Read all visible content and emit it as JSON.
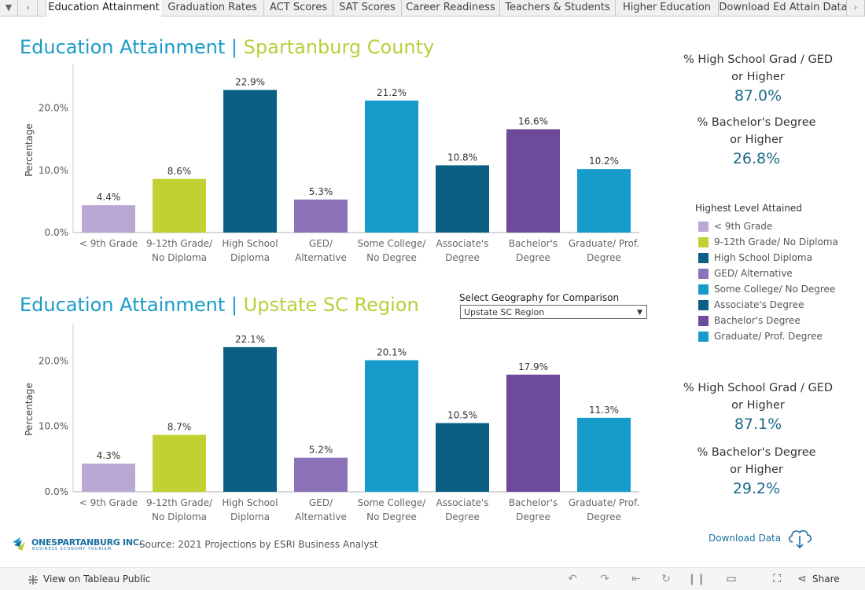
{
  "tabs": [
    "Education Attainment",
    "Graduation Rates",
    "ACT Scores",
    "SAT Scores",
    "Career Readiness",
    "Teachers & Students",
    "Higher Education",
    "Download Ed Attain Data"
  ],
  "active_tab": 0,
  "colors": {
    "lt9": "#b9a8d4",
    "g912": "#c1d132",
    "hs": "#0b5f84",
    "ged": "#8c72b8",
    "some": "#159ccb",
    "assoc": "#0b5f84",
    "bach": "#6e4a9a",
    "grad": "#159ccb",
    "title_blue": "#1a9bc8",
    "title_green": "#b8cf3a",
    "kpi": "#1d6a8a"
  },
  "chart1": {
    "title_main": "Education Attainment",
    "title_sep": "|",
    "title_geo": "Spartanburg County",
    "ylabel": "Percentage"
  },
  "chart2": {
    "title_main": "Education Attainment",
    "title_sep": "|",
    "title_geo": "Upstate SC Region",
    "ylabel": "Percentage"
  },
  "chart_data": [
    {
      "type": "bar",
      "title": "Education Attainment | Spartanburg County",
      "ylabel": "Percentage",
      "categories": [
        [
          "< 9th Grade"
        ],
        [
          "9-12th Grade/",
          "No Diploma"
        ],
        [
          "High School",
          "Diploma"
        ],
        [
          "GED/",
          "Alternative"
        ],
        [
          "Some College/",
          "No Degree"
        ],
        [
          "Associate's",
          "Degree"
        ],
        [
          "Bachelor's",
          "Degree"
        ],
        [
          "Graduate/ Prof.",
          "Degree"
        ]
      ],
      "values": [
        4.4,
        8.6,
        22.9,
        5.3,
        21.2,
        10.8,
        16.6,
        10.2
      ],
      "value_labels": [
        "4.4%",
        "8.6%",
        "22.9%",
        "5.3%",
        "21.2%",
        "10.8%",
        "16.6%",
        "10.2%"
      ],
      "color_keys": [
        "lt9",
        "g912",
        "hs",
        "ged",
        "some",
        "assoc",
        "bach",
        "grad"
      ],
      "yticks": [
        0,
        10,
        20
      ],
      "ytick_labels": [
        "0.0%",
        "10.0%",
        "20.0%"
      ],
      "ylim": [
        0,
        26.5
      ]
    },
    {
      "type": "bar",
      "title": "Education Attainment | Upstate SC Region",
      "ylabel": "Percentage",
      "categories": [
        [
          "< 9th Grade"
        ],
        [
          "9-12th Grade/",
          "No Diploma"
        ],
        [
          "High School",
          "Diploma"
        ],
        [
          "GED/",
          "Alternative"
        ],
        [
          "Some College/",
          "No Degree"
        ],
        [
          "Associate's",
          "Degree"
        ],
        [
          "Bachelor's",
          "Degree"
        ],
        [
          "Graduate/ Prof.",
          "Degree"
        ]
      ],
      "values": [
        4.3,
        8.7,
        22.1,
        5.2,
        20.1,
        10.5,
        17.9,
        11.3
      ],
      "value_labels": [
        "4.3%",
        "8.7%",
        "22.1%",
        "5.2%",
        "20.1%",
        "10.5%",
        "17.9%",
        "11.3%"
      ],
      "color_keys": [
        "lt9",
        "g912",
        "hs",
        "ged",
        "some",
        "assoc",
        "bach",
        "grad"
      ],
      "yticks": [
        0,
        10,
        20
      ],
      "ytick_labels": [
        "0.0%",
        "10.0%",
        "20.0%"
      ],
      "ylim": [
        0,
        25.2
      ]
    }
  ],
  "kpi1": {
    "hs_label_1": "% High School Grad / GED",
    "hs_label_2": "or Higher",
    "hs_value": "87.0%",
    "ba_label_1": "% Bachelor's Degree",
    "ba_label_2": "or Higher",
    "ba_value": "26.8%"
  },
  "kpi2": {
    "hs_label_1": "% High School Grad / GED",
    "hs_label_2": "or Higher",
    "hs_value": "87.1%",
    "ba_label_1": "% Bachelor's Degree",
    "ba_label_2": "or Higher",
    "ba_value": "29.2%"
  },
  "legend": {
    "title": "Highest Level Attained",
    "items": [
      {
        "label": "< 9th Grade",
        "color": "#b9a8d4"
      },
      {
        "label": "9-12th Grade/ No Diploma",
        "color": "#c1d132"
      },
      {
        "label": "High School Diploma",
        "color": "#0b5f84"
      },
      {
        "label": "GED/ Alternative",
        "color": "#8c72b8"
      },
      {
        "label": "Some College/ No Degree",
        "color": "#159ccb"
      },
      {
        "label": "Associate's Degree",
        "color": "#0b5f84"
      },
      {
        "label": "Bachelor's Degree",
        "color": "#6e4a9a"
      },
      {
        "label": "Graduate/ Prof. Degree",
        "color": "#159ccb"
      }
    ]
  },
  "geo_select": {
    "label": "Select Geography for Comparison",
    "value": "Upstate SC Region"
  },
  "source": "Source:  2021 Projections by ESRI Business Analyst",
  "logo": {
    "name": "ONESPARTANBURG INC.",
    "tagline": "BUSINESS   ECONOMY   TOURISM"
  },
  "download_label": "Download Data",
  "bottom": {
    "view_label": "View on Tableau Public",
    "share_label": "Share"
  },
  "icons": [
    "caret-down-icon",
    "chevron-left-icon",
    "chevron-right-icon",
    "cloud-download-icon",
    "undo-icon",
    "redo-icon",
    "revert-icon",
    "refresh-icon",
    "pause-icon",
    "device-layout-icon",
    "fullscreen-icon",
    "share-icon",
    "tableau-logo-icon"
  ]
}
